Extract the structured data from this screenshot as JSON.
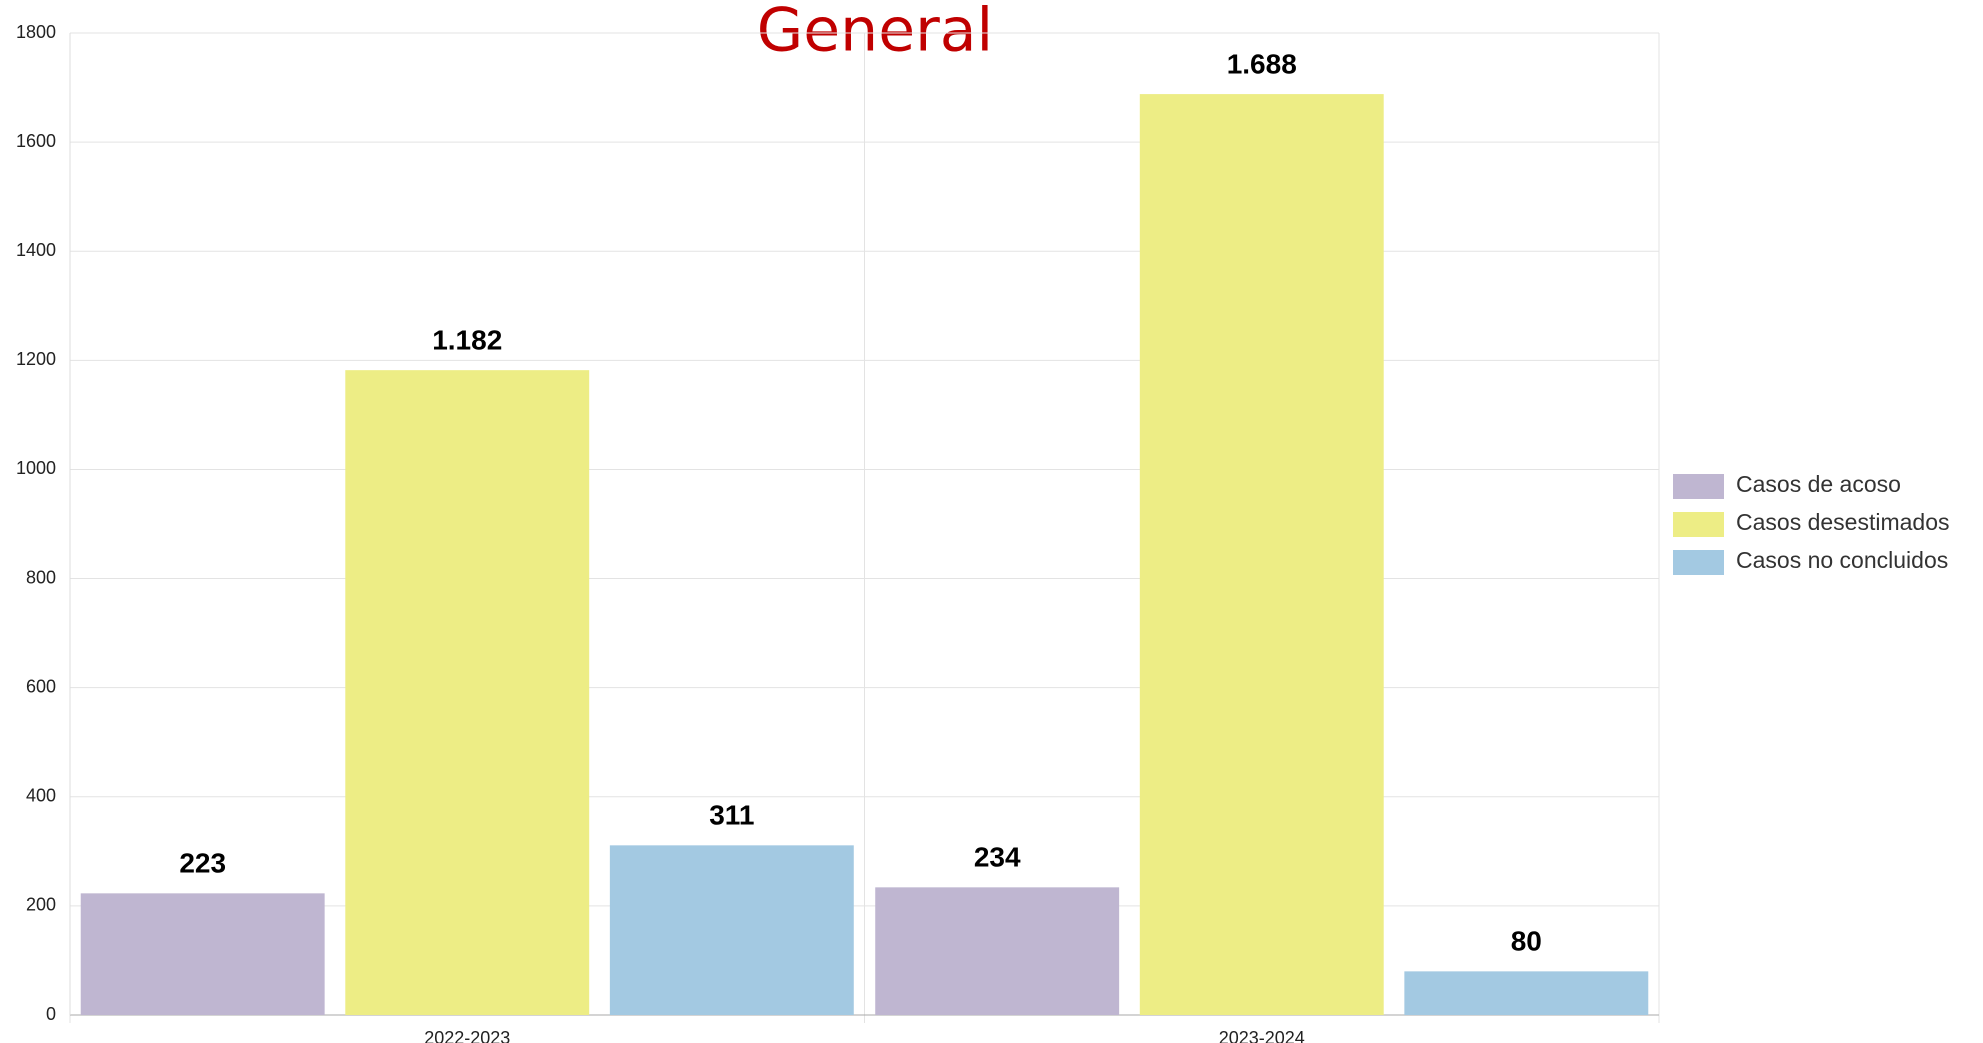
{
  "chart_data": {
    "type": "bar",
    "title": "General",
    "categories": [
      "2022-2023",
      "2023-2024"
    ],
    "series": [
      {
        "name": "Casos de acoso",
        "color": "#bfb6d1",
        "values": [
          223,
          234
        ],
        "value_labels": [
          "223",
          "234"
        ]
      },
      {
        "name": "Casos desestimados",
        "color": "#eded85",
        "values": [
          1182,
          1688
        ],
        "value_labels": [
          "1.182",
          "1.688"
        ]
      },
      {
        "name": "Casos no concluidos",
        "color": "#a3c9e2",
        "values": [
          311,
          80
        ],
        "value_labels": [
          "311",
          "80"
        ]
      }
    ],
    "ylim": [
      0,
      1800
    ],
    "yticks": [
      0,
      200,
      400,
      600,
      800,
      1000,
      1200,
      1400,
      1600,
      1800
    ],
    "grid": true,
    "legend": "right"
  }
}
